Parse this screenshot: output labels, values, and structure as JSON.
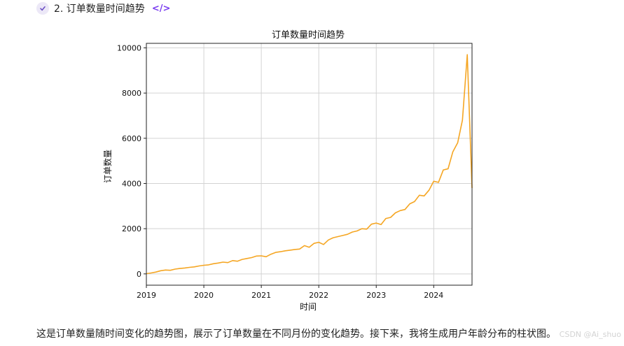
{
  "step": {
    "title": "2. 订单数量时间趋势",
    "code_icon": "</>"
  },
  "chart_data": {
    "type": "line",
    "title": "订单数量时间趋势",
    "xlabel": "时间",
    "ylabel": "订单数量",
    "x_ticks": [
      "2019",
      "2020",
      "2021",
      "2022",
      "2023",
      "2024"
    ],
    "y_ticks": [
      "0",
      "2000",
      "4000",
      "6000",
      "8000",
      "10000"
    ],
    "xlim": [
      "2019-01",
      "2024-09"
    ],
    "ylim": [
      -500,
      10200
    ],
    "grid": true,
    "color": "#f5a623",
    "series": [
      {
        "x": [
          "2019-01",
          "2019-02",
          "2019-03",
          "2019-04",
          "2019-05",
          "2019-06",
          "2019-07",
          "2019-08",
          "2019-09",
          "2019-10",
          "2019-11",
          "2019-12",
          "2020-01",
          "2020-02",
          "2020-03",
          "2020-04",
          "2020-05",
          "2020-06",
          "2020-07",
          "2020-08",
          "2020-09",
          "2020-10",
          "2020-11",
          "2020-12",
          "2021-01",
          "2021-02",
          "2021-03",
          "2021-04",
          "2021-05",
          "2021-06",
          "2021-07",
          "2021-08",
          "2021-09",
          "2021-10",
          "2021-11",
          "2021-12",
          "2022-01",
          "2022-02",
          "2022-03",
          "2022-04",
          "2022-05",
          "2022-06",
          "2022-07",
          "2022-08",
          "2022-09",
          "2022-10",
          "2022-11",
          "2022-12",
          "2023-01",
          "2023-02",
          "2023-03",
          "2023-04",
          "2023-05",
          "2023-06",
          "2023-07",
          "2023-08",
          "2023-09",
          "2023-10",
          "2023-11",
          "2023-12",
          "2024-01",
          "2024-02",
          "2024-03",
          "2024-04",
          "2024-05",
          "2024-06",
          "2024-07",
          "2024-08",
          "2024-09"
        ],
        "values": [
          10,
          40,
          80,
          140,
          170,
          160,
          210,
          240,
          260,
          290,
          310,
          350,
          380,
          400,
          450,
          480,
          520,
          500,
          590,
          560,
          640,
          680,
          720,
          790,
          800,
          760,
          870,
          950,
          980,
          1020,
          1050,
          1080,
          1100,
          1250,
          1180,
          1350,
          1400,
          1300,
          1500,
          1600,
          1650,
          1700,
          1750,
          1850,
          1900,
          2000,
          1980,
          2200,
          2250,
          2180,
          2450,
          2500,
          2700,
          2800,
          2850,
          3100,
          3200,
          3480,
          3450,
          3700,
          4100,
          4050,
          4600,
          4650,
          5400,
          5800,
          6800,
          9700,
          3800
        ]
      }
    ]
  },
  "footer": {
    "text": "这是订单数量随时间变化的趋势图，展示了订单数量在不同月份的变化趋势。接下来，我将生成用户年龄分布的柱状图。"
  },
  "watermark": {
    "text": "CSDN @Ai_shuo"
  }
}
